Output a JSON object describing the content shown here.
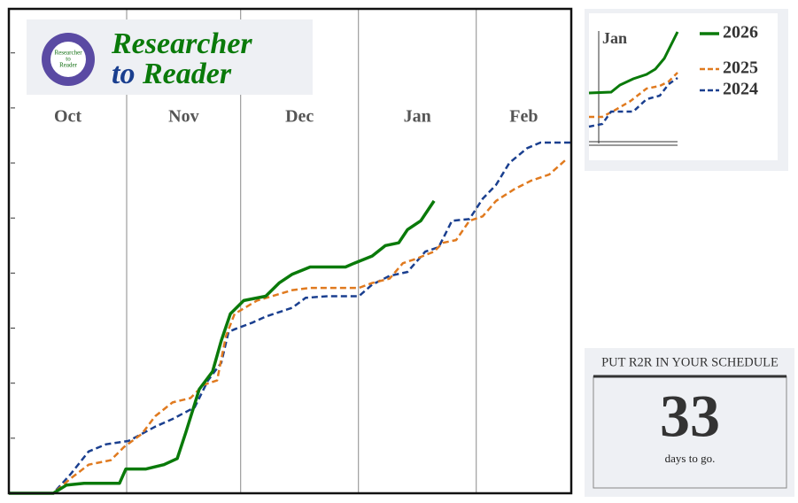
{
  "chart_data": {
    "type": "line",
    "xlim": [
      0,
      148
    ],
    "ylim": [
      0,
      8.8
    ],
    "xticks": [
      {
        "value": 0,
        "label": "Oct"
      },
      {
        "value": 31,
        "label": "Nov"
      },
      {
        "value": 61,
        "label": "Dec"
      },
      {
        "value": 92,
        "label": "Jan"
      },
      {
        "value": 123,
        "label": "Feb"
      }
    ],
    "yticks": [
      1,
      2,
      3,
      4,
      5,
      6,
      7,
      8
    ],
    "grid": true,
    "series": [
      {
        "name": "2026",
        "color": "#0a7a0a",
        "dash": "solid",
        "x": [
          0,
          11.7,
          15.2,
          19.8,
          29.1,
          30.8,
          36.1,
          40.8,
          44.3,
          46.6,
          50.1,
          53.6,
          55.9,
          58.3,
          61.8,
          67.6,
          71.1,
          74.6,
          79.3,
          88.6,
          90.9,
          95.6,
          99.1,
          102.6,
          104.9,
          108.4,
          111.9
        ],
        "values": [
          0,
          0,
          0.15,
          0.18,
          0.18,
          0.44,
          0.44,
          0.52,
          0.63,
          1.11,
          1.89,
          2.21,
          2.77,
          3.26,
          3.5,
          3.58,
          3.82,
          3.98,
          4.11,
          4.11,
          4.18,
          4.31,
          4.5,
          4.55,
          4.79,
          4.95,
          5.31
        ]
      },
      {
        "name": "2025",
        "color": "#e07a1f",
        "dash": "dashed",
        "x": [
          0,
          11.7,
          16.3,
          21,
          26.8,
          30.3,
          35,
          38.5,
          43.1,
          47.8,
          51.3,
          54.8,
          57.1,
          59.4,
          65.3,
          74.6,
          79.3,
          92.1,
          95.6,
          100.2,
          103.7,
          107.2,
          111.9,
          114.2,
          117.7,
          121.2,
          124.7,
          128.2,
          132.9,
          137.5,
          142.2,
          146.9
        ],
        "values": [
          0,
          0,
          0.27,
          0.52,
          0.6,
          0.84,
          1.08,
          1.4,
          1.65,
          1.73,
          1.97,
          2.05,
          2.85,
          3.26,
          3.5,
          3.69,
          3.73,
          3.73,
          3.82,
          3.9,
          4.18,
          4.26,
          4.39,
          4.55,
          4.6,
          4.95,
          5.03,
          5.31,
          5.52,
          5.68,
          5.79,
          6.08
        ]
      },
      {
        "name": "2024",
        "color": "#1a3f8f",
        "dash": "dashed",
        "x": [
          0,
          11.7,
          16.3,
          21,
          25.6,
          31.5,
          35,
          38.5,
          43.1,
          48.9,
          52.4,
          55.9,
          57.8,
          59.4,
          64.1,
          67.6,
          74.6,
          78.1,
          83.9,
          92.1,
          95.6,
          100.2,
          104.9,
          109.6,
          113.1,
          116.6,
          121.2,
          124.7,
          128.2,
          131.7,
          136.4,
          139.9,
          148
        ],
        "values": [
          0,
          0,
          0.35,
          0.76,
          0.89,
          0.95,
          1.08,
          1.21,
          1.35,
          1.56,
          2.05,
          2.37,
          2.93,
          2.98,
          3.1,
          3.21,
          3.37,
          3.55,
          3.58,
          3.58,
          3.79,
          3.95,
          4.02,
          4.39,
          4.47,
          4.95,
          4.98,
          5.35,
          5.6,
          6,
          6.27,
          6.37,
          6.37
        ]
      }
    ]
  },
  "logo": {
    "title_parts": [
      "Researcher",
      "to",
      "Reader"
    ],
    "badge_lines": [
      "Researcher",
      "to",
      "Reader"
    ]
  },
  "legend_inset": {
    "label": "Jan"
  },
  "countdown": {
    "heading": "PUT R2R IN YOUR SCHEDULE",
    "number": "33",
    "caption": "days to go."
  }
}
